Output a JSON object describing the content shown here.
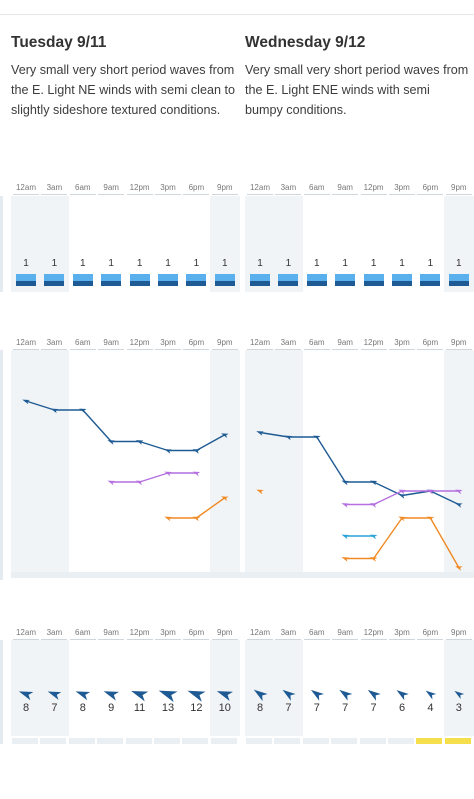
{
  "days": [
    {
      "title": "Tuesday 9/11",
      "summary": "Very small very short period waves from the E. Light NE winds with semi clean to slightly sideshore textured conditions.",
      "hours": [
        "12am",
        "3am",
        "6am",
        "9am",
        "12pm",
        "3pm",
        "6pm",
        "9pm"
      ],
      "wave_heights": [
        "1",
        "1",
        "1",
        "1",
        "1",
        "1",
        "1",
        "1"
      ],
      "swell_series": [
        {
          "name": "",
          "color": "#1e5a93",
          "values": [
            4.4,
            4.0,
            4.0,
            2.6,
            2.6,
            2.2,
            2.2,
            2.9
          ]
        },
        {
          "name": "",
          "color": "#b46fe0",
          "values": [
            null,
            null,
            null,
            0.8,
            0.8,
            1.2,
            1.2,
            null
          ]
        },
        {
          "name": "",
          "color": "#f08a24",
          "values": [
            null,
            null,
            null,
            null,
            null,
            -0.8,
            -0.8,
            0.1
          ]
        }
      ],
      "wind_speeds": [
        "8",
        "7",
        "8",
        "9",
        "11",
        "13",
        "12",
        "10"
      ],
      "wind_icon": "wind-arrow-icon",
      "wind_highlight": [
        false,
        false,
        false,
        false,
        false,
        false,
        false,
        false
      ]
    },
    {
      "title": "Wednesday 9/12",
      "summary": "Very small very short period waves from the E. Light ENE winds with semi bumpy conditions.",
      "hours": [
        "12am",
        "3am",
        "6am",
        "9am",
        "12pm",
        "3pm",
        "6pm",
        "9pm"
      ],
      "wave_heights": [
        "1",
        "1",
        "1",
        "1",
        "1",
        "1",
        "1",
        "1"
      ],
      "swell_series": [
        {
          "name": "",
          "color": "#1e5a93",
          "values": [
            3.0,
            2.8,
            2.8,
            0.8,
            0.8,
            0.2,
            0.4,
            -0.2
          ]
        },
        {
          "name": "",
          "color": "#b46fe0",
          "values": [
            null,
            null,
            null,
            -0.2,
            -0.2,
            0.4,
            0.4,
            0.4
          ]
        },
        {
          "name": "",
          "color": "#2aa3d8",
          "values": [
            null,
            null,
            null,
            -1.6,
            -1.6,
            null,
            null,
            null
          ]
        },
        {
          "name": "",
          "color": "#f08a24",
          "values": [
            0.4,
            null,
            null,
            -2.6,
            -2.6,
            -0.8,
            -0.8,
            -3.0
          ]
        }
      ],
      "wind_speeds": [
        "8",
        "7",
        "7",
        "7",
        "7",
        "6",
        "4",
        "3"
      ],
      "wind_icon": "wind-arrow-icon",
      "wind_highlight": [
        false,
        false,
        false,
        false,
        false,
        false,
        true,
        true
      ]
    }
  ]
}
